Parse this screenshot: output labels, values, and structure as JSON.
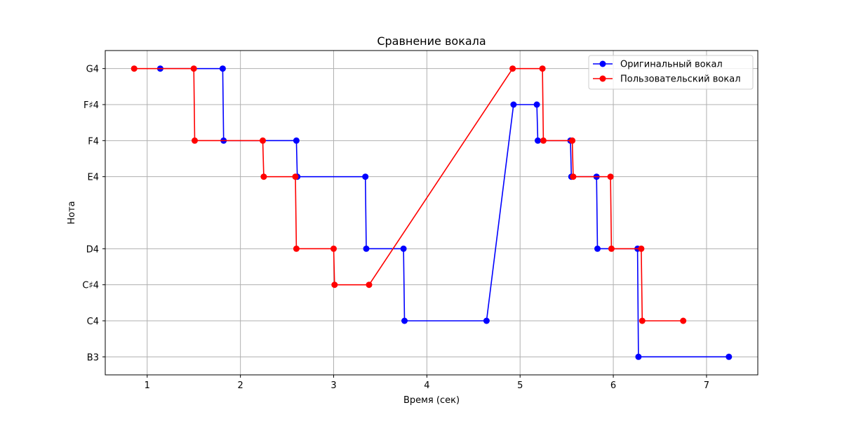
{
  "chart_data": {
    "type": "line",
    "title": "Сравнение вокала",
    "xlabel": "Время (сек)",
    "ylabel": "Нота",
    "xlim": [
      0.55,
      7.55
    ],
    "x_ticks": [
      1,
      2,
      3,
      4,
      5,
      6,
      7
    ],
    "x_tick_labels": [
      "1",
      "2",
      "3",
      "4",
      "5",
      "6",
      "7"
    ],
    "y_categories": [
      {
        "label": "B3",
        "midi": 59
      },
      {
        "label": "C4",
        "midi": 60
      },
      {
        "label": "C♯4",
        "midi": 61
      },
      {
        "label": "D4",
        "midi": 62
      },
      {
        "label": "E4",
        "midi": 64
      },
      {
        "label": "F4",
        "midi": 65
      },
      {
        "label": "F♯4",
        "midi": 66
      },
      {
        "label": "G4",
        "midi": 67
      }
    ],
    "grid": true,
    "legend_position": "top-right",
    "series": [
      {
        "name": "Оригинальный вокал",
        "color": "#0000ff",
        "marker": "circle",
        "points": [
          [
            1.14,
            "G4"
          ],
          [
            1.81,
            "G4"
          ],
          [
            1.82,
            "F4"
          ],
          [
            2.6,
            "F4"
          ],
          [
            2.61,
            "E4"
          ],
          [
            3.34,
            "E4"
          ],
          [
            3.35,
            "D4"
          ],
          [
            3.75,
            "D4"
          ],
          [
            3.76,
            "C4"
          ],
          [
            4.64,
            "C4"
          ],
          [
            4.93,
            "F♯4"
          ],
          [
            5.18,
            "F♯4"
          ],
          [
            5.19,
            "F4"
          ],
          [
            5.54,
            "F4"
          ],
          [
            5.55,
            "E4"
          ],
          [
            5.82,
            "E4"
          ],
          [
            5.83,
            "D4"
          ],
          [
            6.26,
            "D4"
          ],
          [
            6.27,
            "B3"
          ],
          [
            7.24,
            "B3"
          ]
        ]
      },
      {
        "name": "Пользовательский вокал",
        "color": "#ff0000",
        "marker": "circle",
        "points": [
          [
            0.86,
            "G4"
          ],
          [
            1.5,
            "G4"
          ],
          [
            1.51,
            "F4"
          ],
          [
            2.24,
            "F4"
          ],
          [
            2.25,
            "E4"
          ],
          [
            2.59,
            "E4"
          ],
          [
            2.6,
            "D4"
          ],
          [
            3.0,
            "D4"
          ],
          [
            3.01,
            "C♯4"
          ],
          [
            3.38,
            "C♯4"
          ],
          [
            4.92,
            "G4"
          ],
          [
            5.24,
            "G4"
          ],
          [
            5.25,
            "F4"
          ],
          [
            5.56,
            "F4"
          ],
          [
            5.57,
            "E4"
          ],
          [
            5.97,
            "E4"
          ],
          [
            5.98,
            "D4"
          ],
          [
            6.3,
            "D4"
          ],
          [
            6.31,
            "C4"
          ],
          [
            6.75,
            "C4"
          ]
        ]
      }
    ]
  }
}
